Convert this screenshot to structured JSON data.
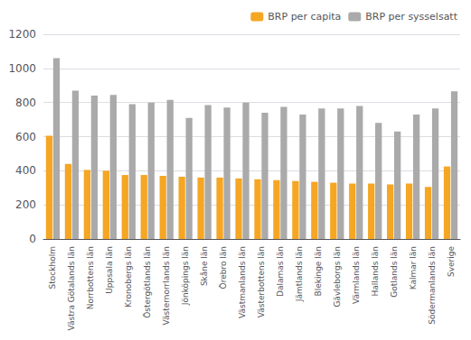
{
  "chart_data": {
    "type": "bar",
    "categories": [
      "Stockholm",
      "Västra Götalands län",
      "Norrbottens län",
      "Uppsala län",
      "Kronobergs län",
      "Östergötlands län",
      "Västernorrlands län",
      "Jönköpings län",
      "Skåne län",
      "Örebro län",
      "Västmanlands län",
      "Västerbottens län",
      "Dalamas län",
      "Jämtlands län",
      "Blekinge län",
      "Gävleborgs län",
      "Värmlands län",
      "Hallands län",
      "Gotlands län",
      "Kalmar län",
      "Södermanlands län",
      "Sverige"
    ],
    "series": [
      {
        "name": "BRP per capita",
        "color": "#F5A623",
        "values": [
          605,
          440,
          405,
          400,
          375,
          375,
          370,
          365,
          360,
          360,
          355,
          350,
          345,
          340,
          335,
          330,
          325,
          325,
          320,
          325,
          305,
          425
        ]
      },
      {
        "name": "BRP per sysselsatt",
        "color": "#AAAAAA",
        "values": [
          1060,
          870,
          840,
          845,
          790,
          800,
          815,
          710,
          785,
          770,
          800,
          740,
          775,
          730,
          765,
          765,
          780,
          680,
          630,
          730,
          765,
          865
        ]
      }
    ],
    "ylim": [
      0,
      1200
    ],
    "yticks": [
      0,
      200,
      400,
      600,
      800,
      1000,
      1200
    ],
    "grid": true,
    "legend": "upper right"
  }
}
